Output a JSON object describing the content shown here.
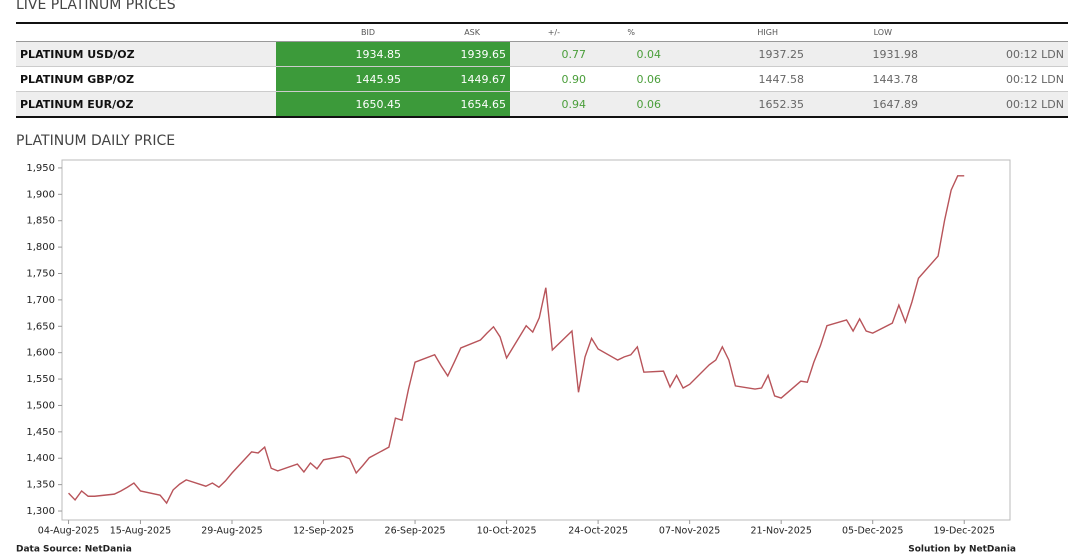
{
  "header": {
    "title": "LIVE PLATINUM PRICES"
  },
  "table": {
    "columns": [
      "BID",
      "ASK",
      "+/-",
      "%",
      "HIGH",
      "LOW"
    ],
    "rows": [
      [
        "PLATINUM USD/OZ",
        "1934.85",
        "1939.65",
        "0.77",
        "0.04",
        "1937.25",
        "1931.98",
        "00:12 LDN"
      ],
      [
        "PLATINUM GBP/OZ",
        "1445.95",
        "1449.67",
        "0.90",
        "0.06",
        "1447.58",
        "1443.78",
        "00:12 LDN"
      ],
      [
        "PLATINUM EUR/OZ",
        "1650.45",
        "1654.65",
        "0.94",
        "0.06",
        "1652.35",
        "1647.89",
        "00:12 LDN"
      ]
    ]
  },
  "chart_data": {
    "type": "line",
    "title": "PLATINUM DAILY PRICE",
    "color": "#b8545a",
    "x": [
      "04-Aug-2025",
      "05-Aug-2025",
      "06-Aug-2025",
      "07-Aug-2025",
      "08-Aug-2025",
      "11-Aug-2025",
      "12-Aug-2025",
      "13-Aug-2025",
      "14-Aug-2025",
      "15-Aug-2025",
      "18-Aug-2025",
      "19-Aug-2025",
      "20-Aug-2025",
      "21-Aug-2025",
      "22-Aug-2025",
      "25-Aug-2025",
      "26-Aug-2025",
      "27-Aug-2025",
      "28-Aug-2025",
      "29-Aug-2025",
      "01-Sep-2025",
      "02-Sep-2025",
      "03-Sep-2025",
      "04-Sep-2025",
      "05-Sep-2025",
      "08-Sep-2025",
      "09-Sep-2025",
      "10-Sep-2025",
      "11-Sep-2025",
      "12-Sep-2025",
      "15-Sep-2025",
      "16-Sep-2025",
      "17-Sep-2025",
      "18-Sep-2025",
      "19-Sep-2025",
      "22-Sep-2025",
      "23-Sep-2025",
      "24-Sep-2025",
      "25-Sep-2025",
      "26-Sep-2025",
      "29-Sep-2025",
      "30-Sep-2025",
      "01-Oct-2025",
      "02-Oct-2025",
      "03-Oct-2025",
      "06-Oct-2025",
      "07-Oct-2025",
      "08-Oct-2025",
      "09-Oct-2025",
      "10-Oct-2025",
      "13-Oct-2025",
      "14-Oct-2025",
      "15-Oct-2025",
      "16-Oct-2025",
      "17-Oct-2025",
      "20-Oct-2025",
      "21-Oct-2025",
      "22-Oct-2025",
      "23-Oct-2025",
      "24-Oct-2025",
      "27-Oct-2025",
      "28-Oct-2025",
      "29-Oct-2025",
      "30-Oct-2025",
      "31-Oct-2025",
      "03-Nov-2025",
      "04-Nov-2025",
      "05-Nov-2025",
      "06-Nov-2025",
      "07-Nov-2025",
      "10-Nov-2025",
      "11-Nov-2025",
      "12-Nov-2025",
      "13-Nov-2025",
      "14-Nov-2025",
      "17-Nov-2025",
      "18-Nov-2025",
      "19-Nov-2025",
      "20-Nov-2025",
      "21-Nov-2025",
      "24-Nov-2025",
      "25-Nov-2025",
      "26-Nov-2025",
      "27-Nov-2025",
      "28-Nov-2025",
      "01-Dec-2025",
      "02-Dec-2025",
      "03-Dec-2025",
      "04-Dec-2025",
      "05-Dec-2025",
      "08-Dec-2025",
      "09-Dec-2025",
      "10-Dec-2025",
      "11-Dec-2025",
      "12-Dec-2025",
      "15-Dec-2025",
      "16-Dec-2025",
      "17-Dec-2025",
      "18-Dec-2025",
      "19-Dec-2025"
    ],
    "values": [
      1334,
      1321,
      1338,
      1328,
      1328,
      1332,
      1338,
      1345,
      1353,
      1338,
      1330,
      1315,
      1340,
      1351,
      1359,
      1347,
      1353,
      1345,
      1357,
      1372,
      1412,
      1410,
      1421,
      1381,
      1376,
      1389,
      1374,
      1391,
      1380,
      1397,
      1404,
      1399,
      1372,
      1386,
      1401,
      1421,
      1476,
      1472,
      1531,
      1582,
      1596,
      1575,
      1556,
      1582,
      1609,
      1624,
      1637,
      1649,
      1630,
      1590,
      1651,
      1639,
      1666,
      1723,
      1605,
      1641,
      1525,
      1592,
      1627,
      1607,
      1586,
      1592,
      1596,
      1611,
      1563,
      1565,
      1535,
      1557,
      1533,
      1540,
      1577,
      1586,
      1611,
      1586,
      1537,
      1531,
      1533,
      1557,
      1518,
      1514,
      1546,
      1544,
      1582,
      1613,
      1651,
      1662,
      1641,
      1664,
      1641,
      1637,
      1656,
      1690,
      1658,
      1696,
      1741,
      1783,
      1851,
      1908,
      1935,
      1935
    ],
    "xlim": [
      "03-Aug-2025",
      "26-Dec-2025"
    ],
    "xticks": [
      "04-Aug-2025",
      "15-Aug-2025",
      "29-Aug-2025",
      "12-Sep-2025",
      "26-Sep-2025",
      "10-Oct-2025",
      "24-Oct-2025",
      "07-Nov-2025",
      "21-Nov-2025",
      "05-Dec-2025",
      "19-Dec-2025"
    ],
    "ylim": [
      1283,
      1965
    ],
    "yticks": [
      {
        "value": 1300,
        "label": "1,300"
      },
      {
        "value": 1350,
        "label": "1,350"
      },
      {
        "value": 1400,
        "label": "1,400"
      },
      {
        "value": 1450,
        "label": "1,450"
      },
      {
        "value": 1500,
        "label": "1,500"
      },
      {
        "value": 1550,
        "label": "1,550"
      },
      {
        "value": 1600,
        "label": "1,600"
      },
      {
        "value": 1650,
        "label": "1,650"
      },
      {
        "value": 1700,
        "label": "1,700"
      },
      {
        "value": 1750,
        "label": "1,750"
      },
      {
        "value": 1800,
        "label": "1,800"
      },
      {
        "value": 1850,
        "label": "1,850"
      },
      {
        "value": 1900,
        "label": "1,900"
      },
      {
        "value": 1950,
        "label": "1,950"
      }
    ],
    "grid": false
  },
  "footer": {
    "source": "Data Source: NetDania",
    "credit": "Solution by NetDania"
  }
}
